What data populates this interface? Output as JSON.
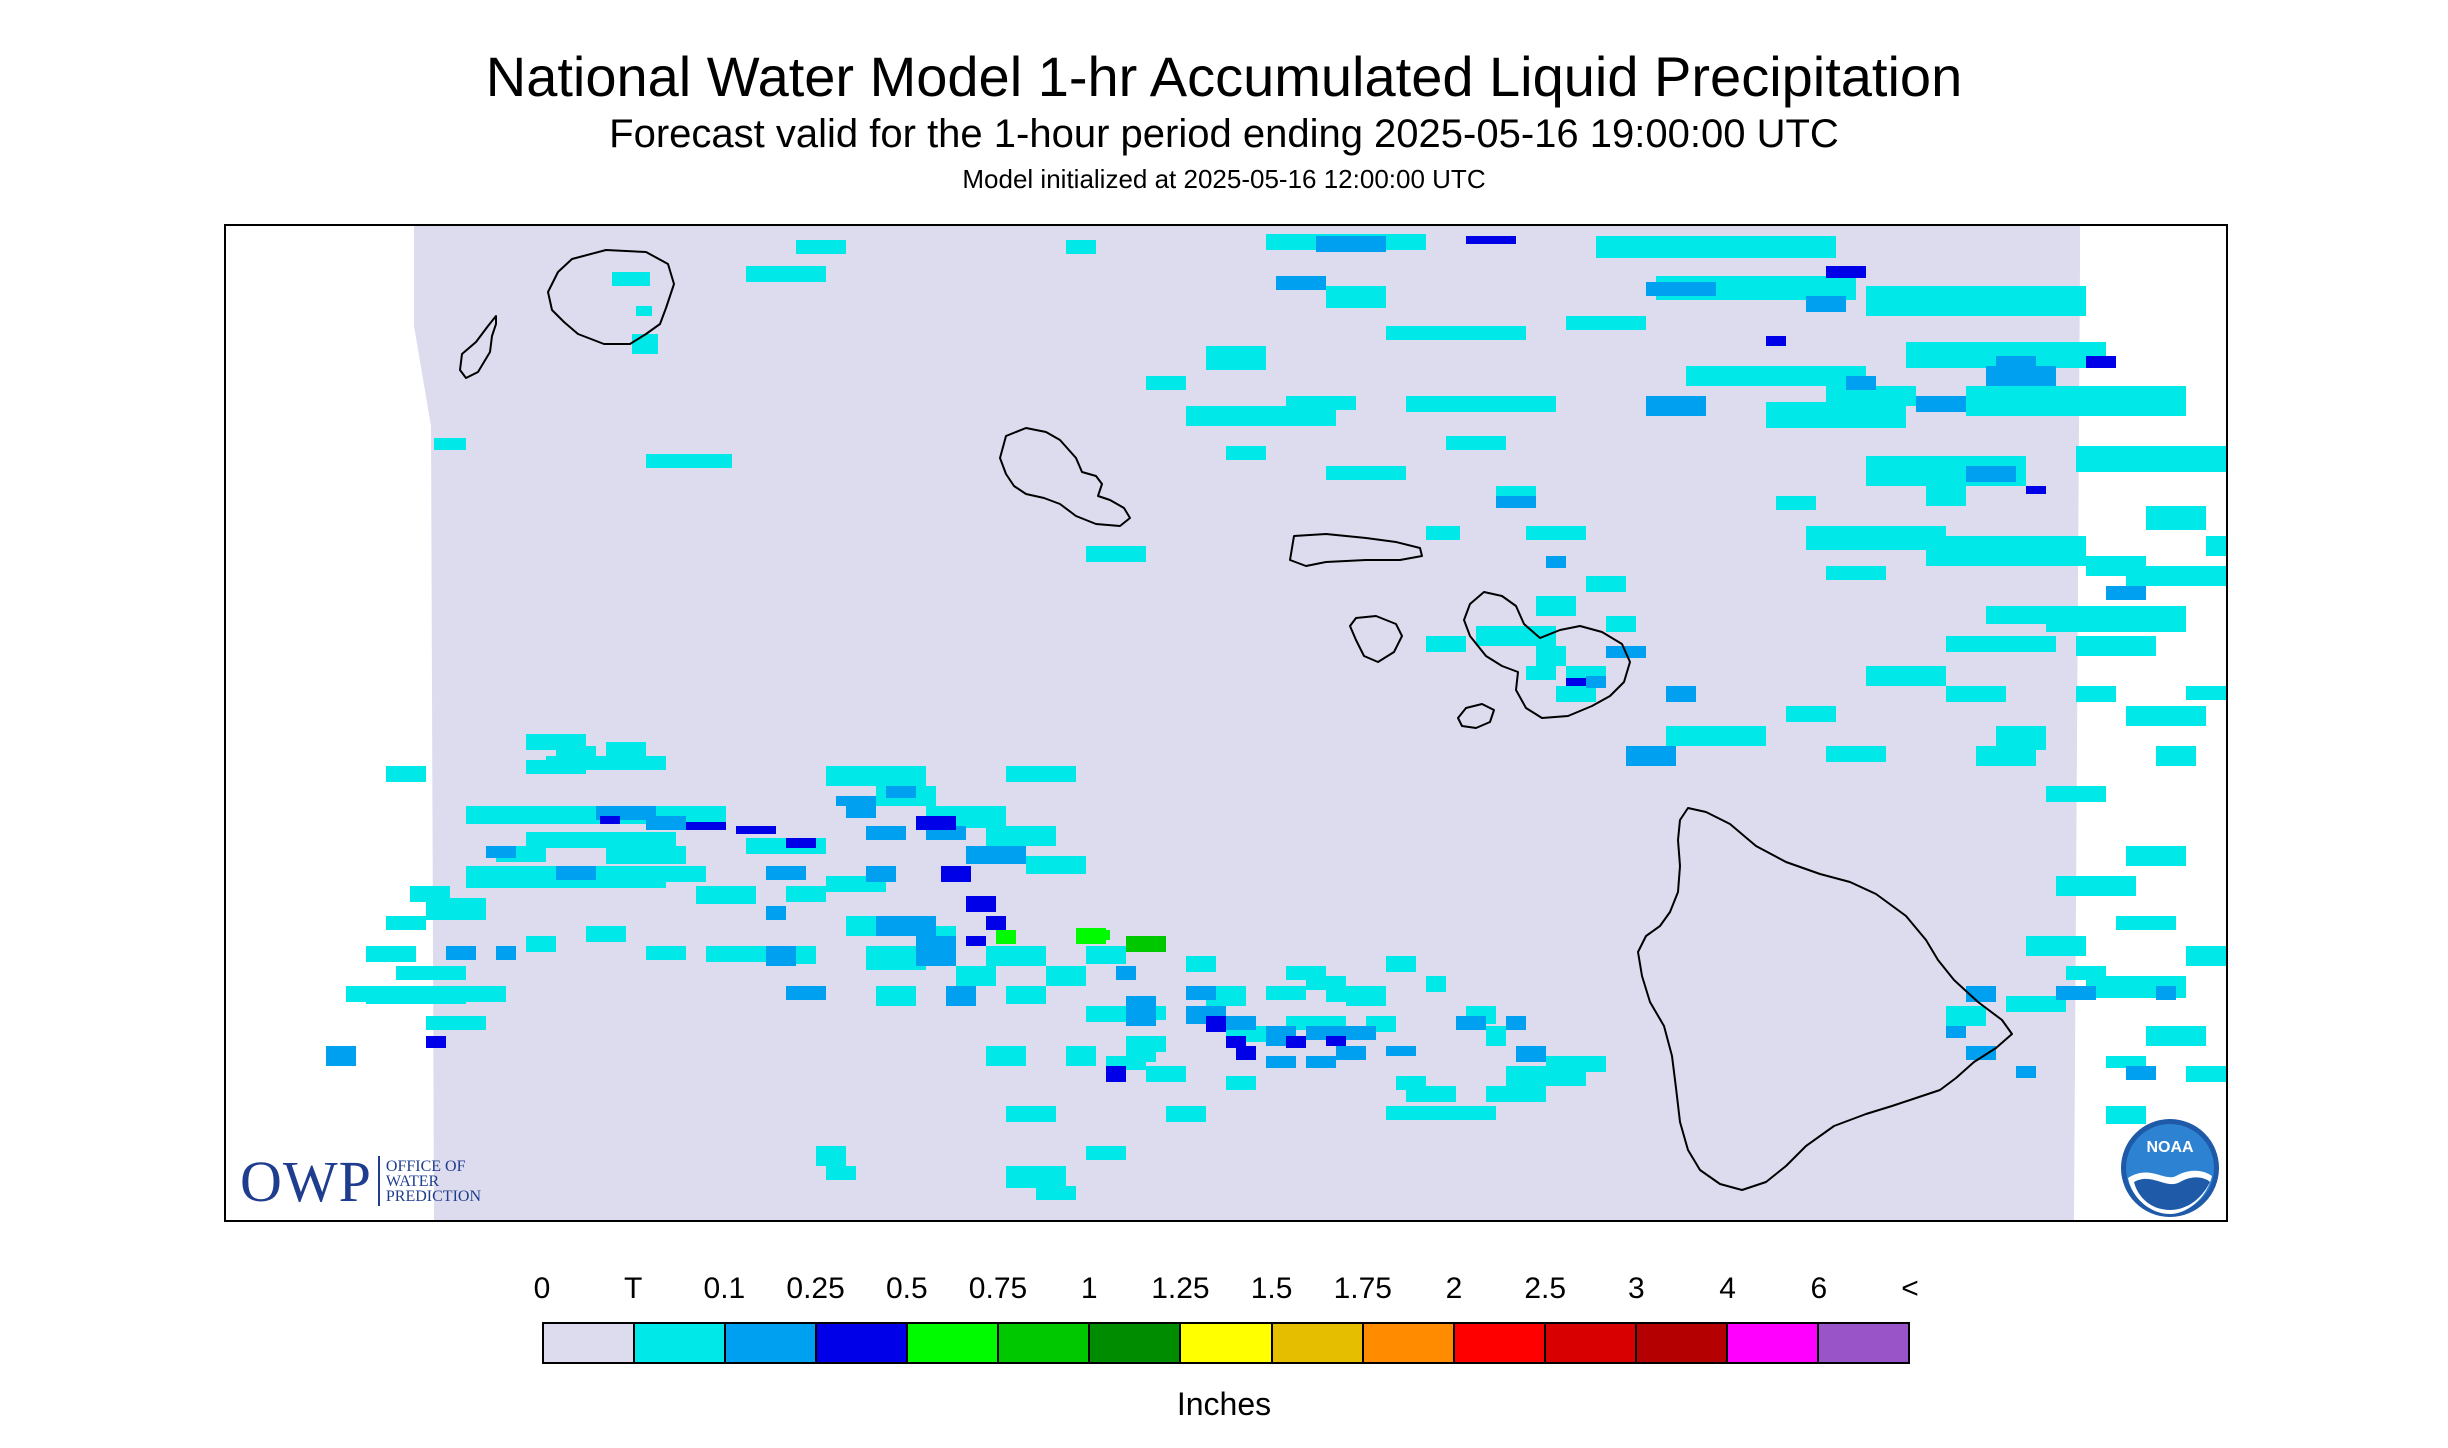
{
  "title": "National Water Model 1-hr Accumulated Liquid Precipitation",
  "subtitle": "Forecast valid for the 1-hour period ending 2025-05-16 19:00:00 UTC",
  "init_line": "Model initialized at 2025-05-16 12:00:00 UTC",
  "logos": {
    "owp": {
      "main": "OWP",
      "sub": [
        "OFFICE OF",
        "WATER",
        "PREDICTION"
      ]
    },
    "noaa": {
      "text": "NOAA"
    }
  },
  "map": {
    "no_data_color": "#ffffff",
    "ocean_color": "#dcdcee",
    "coastline_color": "#000000"
  },
  "legend": {
    "tick_labels": [
      "0",
      "T",
      "0.1",
      "0.25",
      "0.5",
      "0.75",
      "1",
      "1.25",
      "1.5",
      "1.75",
      "2",
      "2.5",
      "3",
      "4",
      "6",
      "<"
    ],
    "colors": [
      "#dcdcee",
      "#00e8e8",
      "#00a0f0",
      "#0000e8",
      "#00fa00",
      "#00c800",
      "#008c00",
      "#ffff00",
      "#e6be00",
      "#ff8c00",
      "#ff0000",
      "#d80000",
      "#b40000",
      "#ff00ff",
      "#9955c8"
    ],
    "units_label": "Inches"
  }
}
